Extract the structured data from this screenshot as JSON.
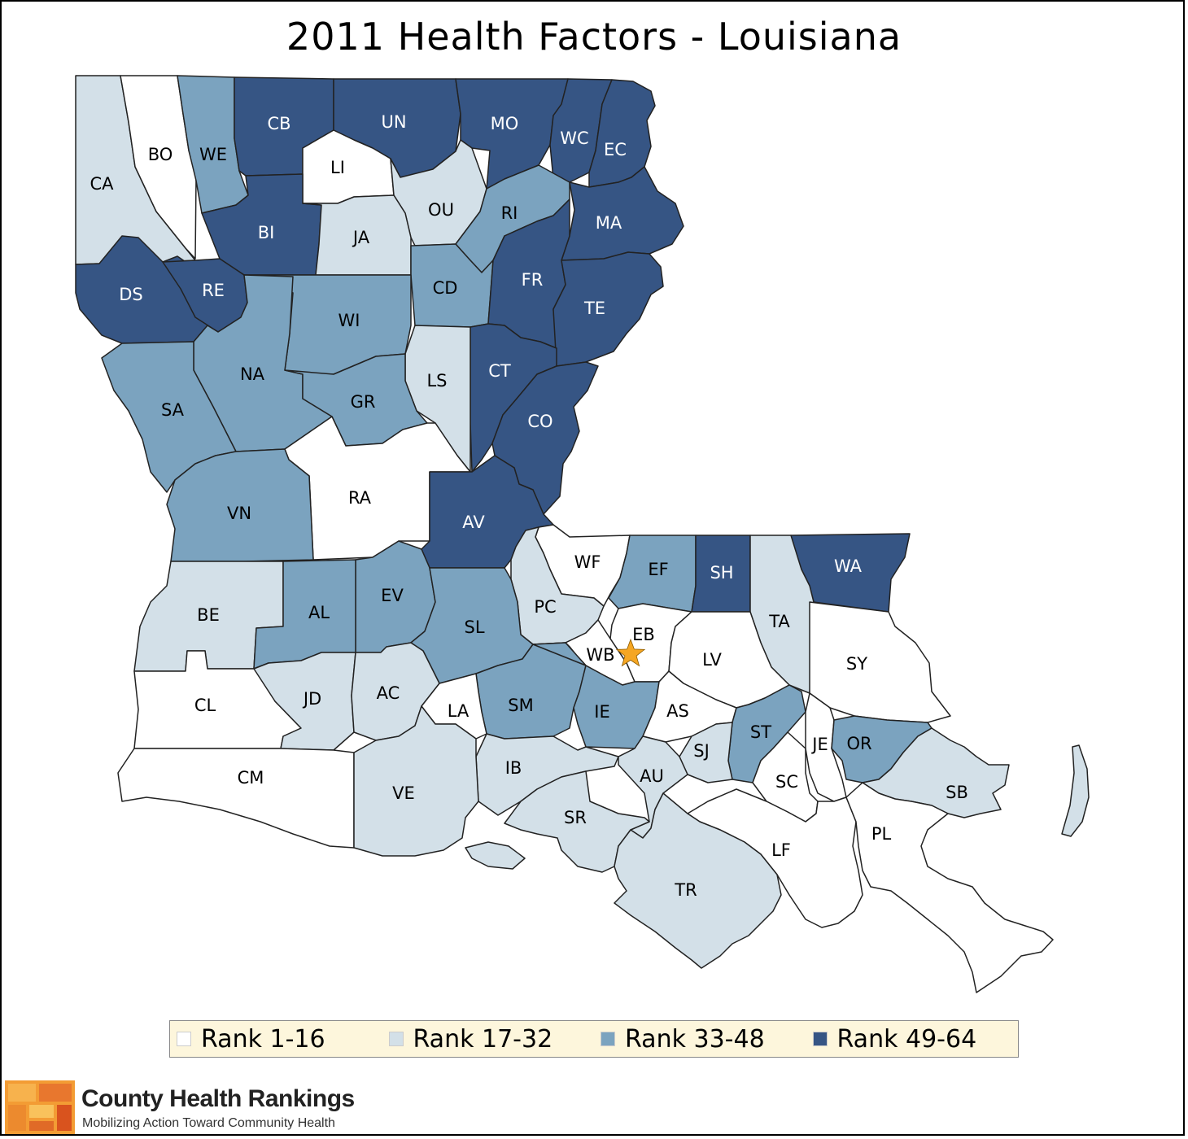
{
  "title": "2011 Health Factors - Louisiana",
  "colors": {
    "rank1": "#ffffff",
    "rank2": "#d3e0e8",
    "rank3": "#7ba3bf",
    "rank4": "#365584",
    "border": "#222222",
    "capital_star": "#f5a623"
  },
  "legend": [
    {
      "label": "Rank 1-16",
      "color": "#ffffff"
    },
    {
      "label": "Rank 17-32",
      "color": "#d3e0e8"
    },
    {
      "label": "Rank 33-48",
      "color": "#7ba3bf"
    },
    {
      "label": "Rank 49-64",
      "color": "#365584"
    }
  ],
  "parishes": [
    {
      "code": "CA",
      "tier": 2
    },
    {
      "code": "BO",
      "tier": 1
    },
    {
      "code": "WE",
      "tier": 3
    },
    {
      "code": "CB",
      "tier": 4
    },
    {
      "code": "UN",
      "tier": 4
    },
    {
      "code": "MO",
      "tier": 4
    },
    {
      "code": "WC",
      "tier": 4
    },
    {
      "code": "EC",
      "tier": 4
    },
    {
      "code": "LI",
      "tier": 1
    },
    {
      "code": "OU",
      "tier": 2
    },
    {
      "code": "RI",
      "tier": 3
    },
    {
      "code": "BI",
      "tier": 4
    },
    {
      "code": "JA",
      "tier": 2
    },
    {
      "code": "MA",
      "tier": 4
    },
    {
      "code": "DS",
      "tier": 4
    },
    {
      "code": "RE",
      "tier": 4
    },
    {
      "code": "CD",
      "tier": 3
    },
    {
      "code": "FR",
      "tier": 4
    },
    {
      "code": "WI",
      "tier": 3
    },
    {
      "code": "TE",
      "tier": 4
    },
    {
      "code": "NA",
      "tier": 3
    },
    {
      "code": "CT",
      "tier": 4
    },
    {
      "code": "LS",
      "tier": 2
    },
    {
      "code": "GR",
      "tier": 3
    },
    {
      "code": "SA",
      "tier": 3
    },
    {
      "code": "CO",
      "tier": 4
    },
    {
      "code": "RA",
      "tier": 1
    },
    {
      "code": "VN",
      "tier": 3
    },
    {
      "code": "AV",
      "tier": 4
    },
    {
      "code": "WF",
      "tier": 1
    },
    {
      "code": "EF",
      "tier": 3
    },
    {
      "code": "SH",
      "tier": 4
    },
    {
      "code": "WA",
      "tier": 4
    },
    {
      "code": "EV",
      "tier": 3
    },
    {
      "code": "BE",
      "tier": 2
    },
    {
      "code": "AL",
      "tier": 3
    },
    {
      "code": "PC",
      "tier": 2
    },
    {
      "code": "EB",
      "tier": 1
    },
    {
      "code": "TA",
      "tier": 2
    },
    {
      "code": "SL",
      "tier": 3
    },
    {
      "code": "WB",
      "tier": 1
    },
    {
      "code": "LV",
      "tier": 1
    },
    {
      "code": "SY",
      "tier": 1
    },
    {
      "code": "CL",
      "tier": 1
    },
    {
      "code": "JD",
      "tier": 2
    },
    {
      "code": "AC",
      "tier": 2
    },
    {
      "code": "SM",
      "tier": 3
    },
    {
      "code": "IE",
      "tier": 3
    },
    {
      "code": "AS",
      "tier": 1
    },
    {
      "code": "LA",
      "tier": 1
    },
    {
      "code": "ST",
      "tier": 3
    },
    {
      "code": "JE",
      "tier": 1
    },
    {
      "code": "OR",
      "tier": 3
    },
    {
      "code": "SJ",
      "tier": 2
    },
    {
      "code": "CM",
      "tier": 1
    },
    {
      "code": "IB",
      "tier": 2
    },
    {
      "code": "AU",
      "tier": 2
    },
    {
      "code": "SC",
      "tier": 1
    },
    {
      "code": "SB",
      "tier": 2
    },
    {
      "code": "VE",
      "tier": 2
    },
    {
      "code": "SR",
      "tier": 2
    },
    {
      "code": "LF",
      "tier": 1
    },
    {
      "code": "PL",
      "tier": 1
    },
    {
      "code": "TR",
      "tier": 2
    }
  ],
  "brand": {
    "name": "County Health Rankings",
    "tagline": "Mobilizing Action Toward Community Health"
  }
}
